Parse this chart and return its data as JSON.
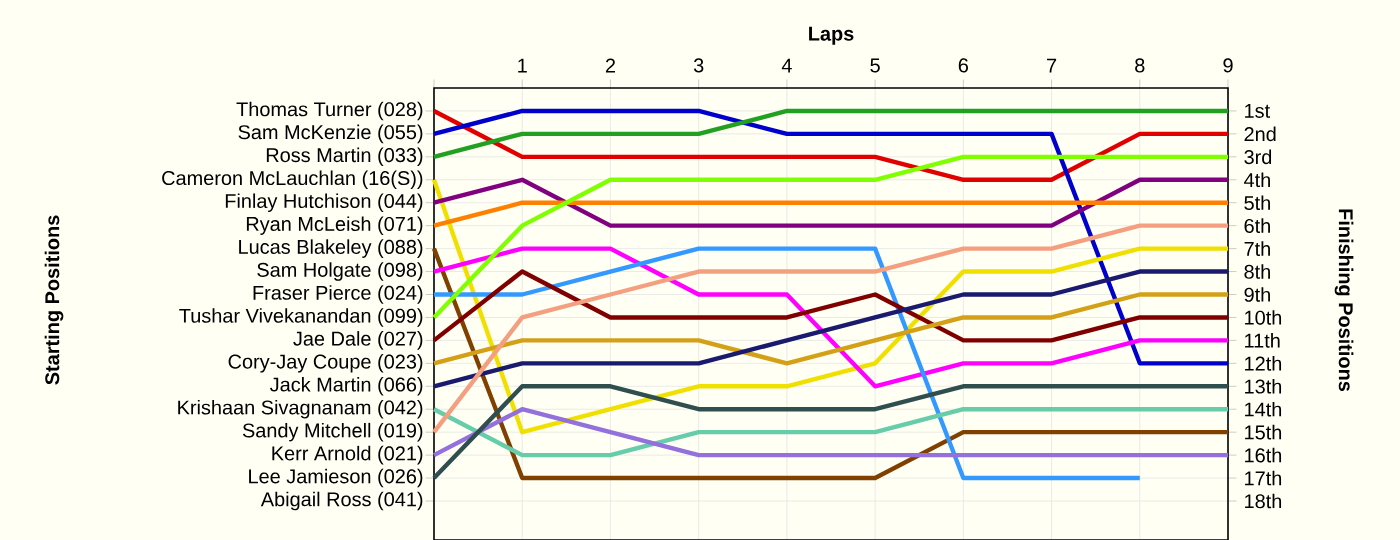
{
  "chart_data": {
    "type": "line",
    "xlabel": "Laps",
    "y2label": "Finishing Positions",
    "x": [
      0,
      1,
      2,
      3,
      4,
      5,
      6,
      7,
      8,
      9
    ],
    "xlim": [
      0,
      9
    ],
    "xticks": [
      {
        "value": 0,
        "label": null
      },
      1,
      2,
      3,
      4,
      5,
      6,
      7,
      8,
      9
    ],
    "ylim": [
      19.7,
      0
    ],
    "yticks": [
      {
        "value": 1,
        "label": "1st"
      },
      {
        "value": 2,
        "label": "2nd"
      },
      {
        "value": 3,
        "label": "3rd"
      },
      {
        "value": 4,
        "label": "4th"
      },
      {
        "value": 5,
        "label": "5th"
      },
      {
        "value": 6,
        "label": "6th"
      },
      {
        "value": 7,
        "label": "7th"
      },
      {
        "value": 8,
        "label": "8th"
      },
      {
        "value": 9,
        "label": "9th"
      },
      {
        "value": 10,
        "label": "10th"
      },
      {
        "value": 11,
        "label": "11th"
      },
      {
        "value": 12,
        "label": "12th"
      },
      {
        "value": 13,
        "label": "13th"
      },
      {
        "value": 14,
        "label": "14th"
      },
      {
        "value": 15,
        "label": "15th"
      },
      {
        "value": 16,
        "label": "16th"
      },
      {
        "value": 17,
        "label": "17th"
      },
      {
        "value": 18,
        "label": "18th"
      }
    ],
    "annotations": [
      "Thomas Turner (028)",
      "Sam McKenzie (055)",
      "Ross Martin (033)",
      "Cameron McLauchlan (16(S))",
      "Finlay Hutchison (044)",
      "Ryan McLeish (071)",
      "Lucas Blakeley (088)",
      "Sam Holgate (098)",
      "Fraser Pierce (024)",
      "Tushar Vivekanandan (099)",
      "Jae Dale (027)",
      "Cory-Jay Coupe (023)",
      "Jack Martin (066)",
      "Krishaan Sivagnanam (042)",
      "Sandy Mitchell (019)",
      "Kerr Arnold (021)",
      "Lee Jamieson (026)",
      "Abigail Ross (041)",
      "Starting Positions"
    ],
    "grid": true,
    "series": [
      {
        "color": "#e00000",
        "values": [
          1,
          3,
          3,
          3,
          3,
          3,
          4,
          4,
          2,
          2
        ]
      },
      {
        "color": "#0000cc",
        "values": [
          2,
          1,
          1,
          1,
          2,
          2,
          2,
          2,
          12,
          12
        ]
      },
      {
        "color": "#22a022",
        "values": [
          3,
          2,
          2,
          2,
          1,
          1,
          1,
          1,
          1,
          1
        ]
      },
      {
        "color": "#f0e000",
        "values": [
          4,
          15,
          14,
          13,
          13,
          12,
          8,
          8,
          7,
          7
        ]
      },
      {
        "color": "#800080",
        "values": [
          5,
          4,
          6,
          6,
          6,
          6,
          6,
          6,
          4,
          4
        ]
      },
      {
        "color": "#ff8000",
        "values": [
          6,
          5,
          5,
          5,
          5,
          5,
          5,
          5,
          5,
          5
        ]
      },
      {
        "color": "#804000",
        "values": [
          7,
          17,
          17,
          17,
          17,
          17,
          15,
          15,
          15,
          15
        ]
      },
      {
        "color": "#ff00ff",
        "values": [
          8,
          7,
          7,
          9,
          9,
          13,
          12,
          12,
          11,
          11
        ]
      },
      {
        "color": "#3399ff",
        "values": [
          9,
          9,
          8,
          7,
          7,
          7,
          17,
          17,
          17,
          null
        ]
      },
      {
        "color": "#80ff00",
        "values": [
          10,
          6,
          4,
          4,
          4,
          4,
          3,
          3,
          3,
          3
        ]
      },
      {
        "color": "#800000",
        "values": [
          11,
          8,
          10,
          10,
          10,
          9,
          11,
          11,
          10,
          10
        ]
      },
      {
        "color": "#d4a017",
        "values": [
          12,
          11,
          11,
          11,
          12,
          11,
          10,
          10,
          9,
          9
        ]
      },
      {
        "color": "#1a1a6e",
        "values": [
          13,
          12,
          12,
          12,
          11,
          10,
          9,
          9,
          8,
          8
        ]
      },
      {
        "color": "#66ccaa",
        "values": [
          14,
          16,
          16,
          15,
          15,
          15,
          14,
          14,
          14,
          14
        ]
      },
      {
        "color": "#f4a080",
        "values": [
          15,
          10,
          9,
          8,
          8,
          8,
          7,
          7,
          6,
          6
        ]
      },
      {
        "color": "#9370db",
        "values": [
          16,
          14,
          15,
          16,
          16,
          16,
          16,
          16,
          16,
          16
        ]
      },
      {
        "color": "#2f4f4f",
        "values": [
          17,
          13,
          13,
          14,
          14,
          14,
          13,
          13,
          13,
          13
        ]
      }
    ]
  }
}
